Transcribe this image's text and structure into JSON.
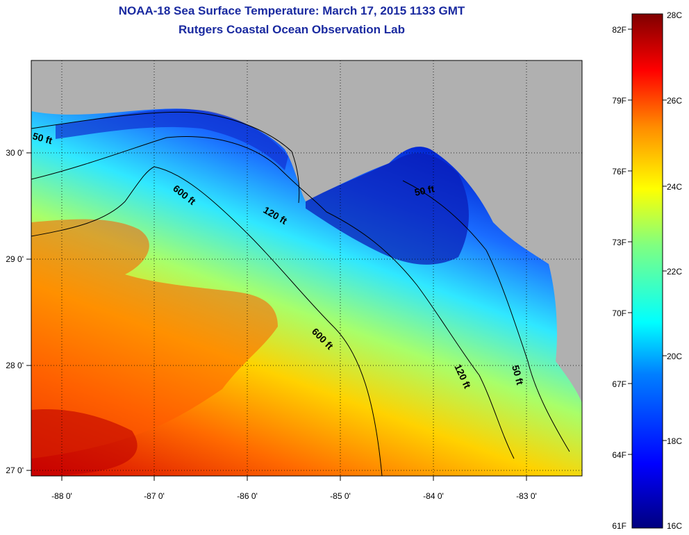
{
  "title": "NOAA-18 Sea Surface Temperature:  March 17, 2015 1133 GMT",
  "subtitle": "Rutgers Coastal Ocean Observation Lab",
  "map": {
    "lon_ticks": [
      "-88 0'",
      "-87 0'",
      "-86 0'",
      "-85 0'",
      "-84 0'",
      "-83 0'"
    ],
    "lat_ticks": [
      "30 0'",
      "29 0'",
      "28 0'",
      "27 0'"
    ],
    "contour_labels": [
      "50 ft",
      "600 ft",
      "120 ft",
      "50 ft",
      "600 ft",
      "120 ft",
      "50 ft"
    ],
    "land_color": "#b0b0b0"
  },
  "colorbar": {
    "fahrenheit_labels": [
      "82F",
      "79F",
      "76F",
      "73F",
      "70F",
      "67F",
      "64F",
      "61F"
    ],
    "celsius_labels": [
      "28C",
      "26C",
      "24C",
      "22C",
      "20C",
      "18C",
      "16C"
    ],
    "colors": [
      "#7f0000",
      "#ff0000",
      "#ff8c00",
      "#ffff00",
      "#80ff80",
      "#00ffff",
      "#0080ff",
      "#0000ff",
      "#00007f"
    ]
  }
}
